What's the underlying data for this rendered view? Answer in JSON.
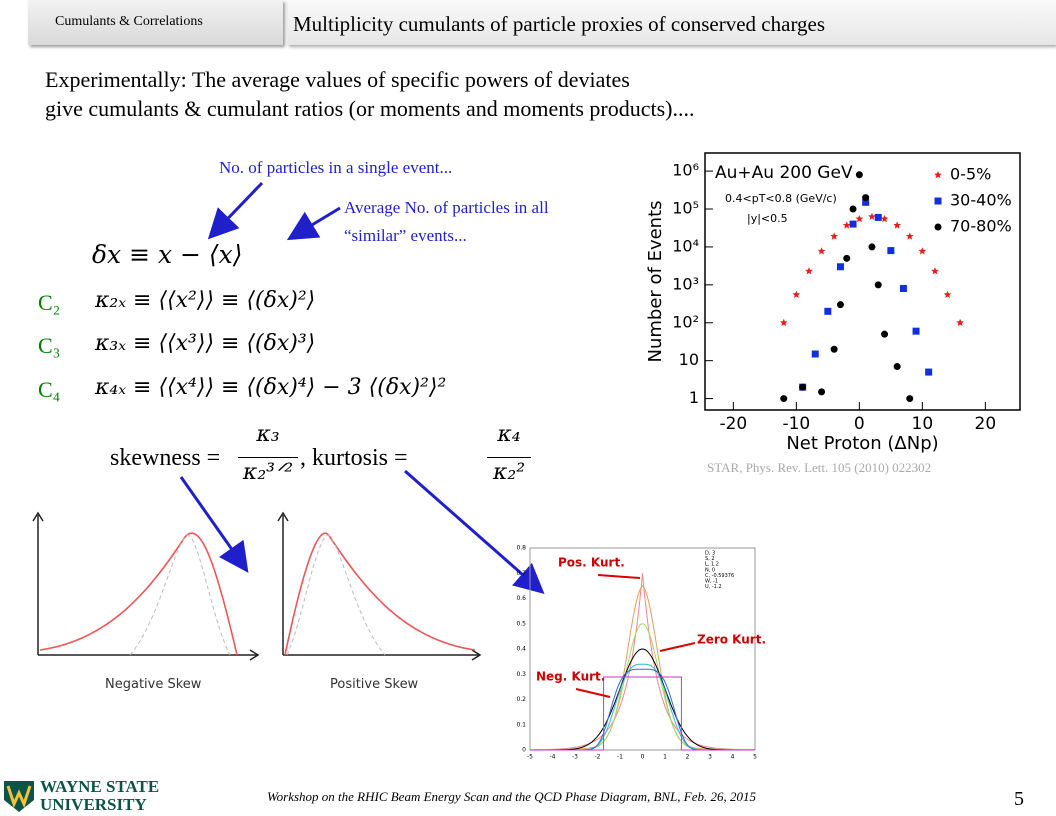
{
  "header": {
    "section": "Cumulants & Correlations",
    "title": "Multiplicity cumulants of particle proxies of conserved charges"
  },
  "intro": [
    "Experimentally:  The average values of specific powers of deviates",
    "give cumulants & cumulant ratios (or moments and moments products)...."
  ],
  "annotations": {
    "single": "No. of particles in a single event...",
    "average": [
      "Average No. of particles in all",
      "“similar” events..."
    ]
  },
  "equations": {
    "deviate": "δx  ≡  x − ⟨x⟩",
    "cumulants": [
      {
        "label": "C₂",
        "formula": "κ₂ₓ  ≡  ⟨⟨x²⟩⟩ ≡ ⟨(δx)²⟩"
      },
      {
        "label": "C₃",
        "formula": "κ₃ₓ  ≡  ⟨⟨x³⟩⟩ ≡ ⟨(δx)³⟩"
      },
      {
        "label": "C₄",
        "formula": "κ₄ₓ  ≡  ⟨⟨x⁴⟩⟩ ≡ ⟨(δx)⁴⟩ − 3 ⟨(δx)²⟩²"
      }
    ],
    "skewness": {
      "lhs": "skewness =",
      "num": "κ₃",
      "den": "κ₂³ᐟ²"
    },
    "kurtosis": {
      "lhs": ", kurtosis =",
      "num": "κ₄",
      "den": "κ₂²"
    }
  },
  "star_plot": {
    "type": "scatter",
    "title": "Au+Au 200 GeV",
    "cuts": [
      "0.4<pT<0.8 (GeV/c)",
      "|y|<0.5"
    ],
    "xlabel": "Net Proton (ΔNp)",
    "ylabel": "Number of Events",
    "log_y": true,
    "xlim": [
      -24.5,
      25.5
    ],
    "xticks": [
      -20,
      -10,
      0,
      10,
      20
    ],
    "ylim": [
      0.5,
      3000000
    ],
    "yticks": [
      1,
      10,
      {
        "value": 100,
        "label": "10²"
      },
      {
        "value": 1000,
        "label": "10³"
      },
      {
        "value": 10000,
        "label": "10⁴"
      },
      {
        "value": 100000,
        "label": "10⁵"
      },
      {
        "value": 1000000,
        "label": "10⁶"
      }
    ],
    "series": [
      {
        "name": "0-5%",
        "color": "#e8201c",
        "marker": "star",
        "x": [
          -12,
          -10,
          -8,
          -6,
          -4,
          -2,
          0,
          2,
          4,
          6,
          8,
          10,
          12,
          14,
          16
        ],
        "values": [
          100,
          550,
          2300,
          7700,
          19000,
          37000,
          55000,
          63000,
          55000,
          37000,
          19000,
          7700,
          2300,
          550,
          100
        ]
      },
      {
        "name": "30-40%",
        "color": "#1030e0",
        "marker": "square",
        "x": [
          -9,
          -7,
          -5,
          -3,
          -1,
          1,
          3,
          5,
          7,
          9,
          11
        ],
        "values": [
          2,
          15,
          200,
          3000,
          40000,
          150000,
          60000,
          8000,
          800,
          60,
          5
        ]
      },
      {
        "name": "70-80%",
        "color": "#000000",
        "marker": "circle",
        "x": [
          -12,
          -9,
          -6,
          -4,
          -3,
          -2,
          -1,
          0,
          1,
          2,
          3,
          4,
          6,
          8
        ],
        "values": [
          1,
          2,
          1.5,
          20,
          300,
          5000,
          100000,
          800000,
          200000,
          10000,
          1000,
          50,
          7,
          1
        ]
      }
    ],
    "source": "STAR,   Phys. Rev. Lett. 105 (2010) 022302"
  },
  "skew_figures": [
    "Negative Skew",
    "Positive Skew"
  ],
  "kurtosis_figure": {
    "labels": [
      "Pos. Kurt.",
      "Zero Kurt.",
      "Neg. Kurt."
    ],
    "yticks": [
      "0",
      "0.1",
      "0.2",
      "0.3",
      "0.4",
      "0.5",
      "0.6",
      "0.7",
      "0.8"
    ],
    "xticks": [
      "-5",
      "-4",
      "-3",
      "-2",
      "-1",
      "0",
      "1",
      "2",
      "3",
      "4",
      "5"
    ],
    "legend": [
      "D, 3",
      "S, 2",
      "L, 1.2",
      "N, 0",
      "C, -0.59376",
      "W, -1",
      "U, -1.2"
    ]
  },
  "footer": {
    "logo": [
      "WAYNE STATE",
      "UNIVERSITY"
    ],
    "event": "Workshop on the RHIC Beam Energy Scan and the QCD Phase Diagram, BNL, Feb. 26, 2015",
    "page": "5"
  }
}
